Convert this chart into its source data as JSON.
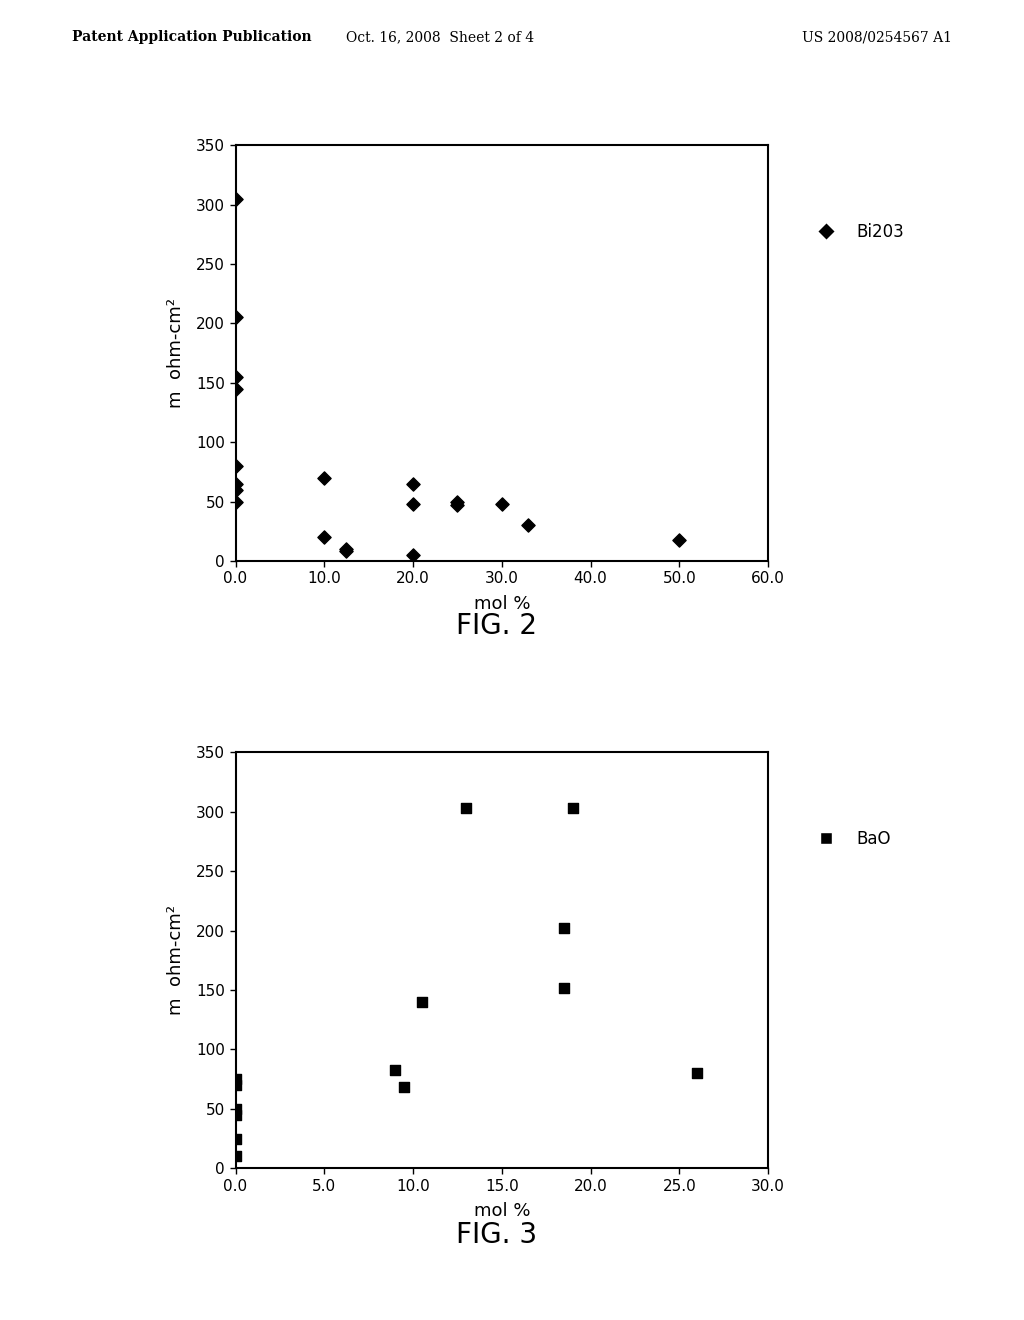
{
  "fig2": {
    "title": "FIG. 2",
    "xlabel": "mol %",
    "ylabel": "m  ohm-cm²",
    "xlim": [
      0.0,
      60.0
    ],
    "ylim": [
      0,
      350
    ],
    "xticks": [
      0.0,
      10.0,
      20.0,
      30.0,
      40.0,
      50.0,
      60.0
    ],
    "yticks": [
      0,
      50,
      100,
      150,
      200,
      250,
      300,
      350
    ],
    "legend_label": "Bi203",
    "marker": "D",
    "color": "black",
    "x": [
      0.0,
      0.0,
      0.0,
      0.0,
      0.0,
      0.0,
      0.0,
      0.0,
      10.0,
      10.0,
      12.5,
      12.5,
      20.0,
      20.0,
      20.0,
      25.0,
      25.0,
      30.0,
      33.0,
      50.0
    ],
    "y": [
      305,
      205,
      155,
      145,
      80,
      65,
      60,
      50,
      70,
      20,
      10,
      8,
      65,
      48,
      5,
      50,
      47,
      48,
      30,
      18
    ]
  },
  "fig3": {
    "title": "FIG. 3",
    "xlabel": "mol %",
    "ylabel": "m  ohm-cm²",
    "xlim": [
      0.0,
      30.0
    ],
    "ylim": [
      0,
      350
    ],
    "xticks": [
      0.0,
      5.0,
      10.0,
      15.0,
      20.0,
      25.0,
      30.0
    ],
    "yticks": [
      0,
      50,
      100,
      150,
      200,
      250,
      300,
      350
    ],
    "legend_label": "BaO",
    "marker": "s",
    "color": "black",
    "x": [
      0.0,
      0.0,
      0.0,
      0.0,
      0.0,
      0.0,
      9.0,
      9.5,
      10.5,
      13.0,
      18.5,
      18.5,
      19.0,
      26.0
    ],
    "y": [
      75,
      70,
      50,
      45,
      25,
      10,
      83,
      68,
      140,
      303,
      202,
      152,
      303,
      80
    ]
  },
  "header_left": "Patent Application Publication",
  "header_center": "Oct. 16, 2008  Sheet 2 of 4",
  "header_right": "US 2008/0254567 A1",
  "bg_color": "#ffffff",
  "text_color": "#000000",
  "fig_title_fontsize": 20,
  "axis_label_fontsize": 13,
  "tick_fontsize": 11,
  "header_fontsize": 10,
  "legend_fontsize": 12
}
